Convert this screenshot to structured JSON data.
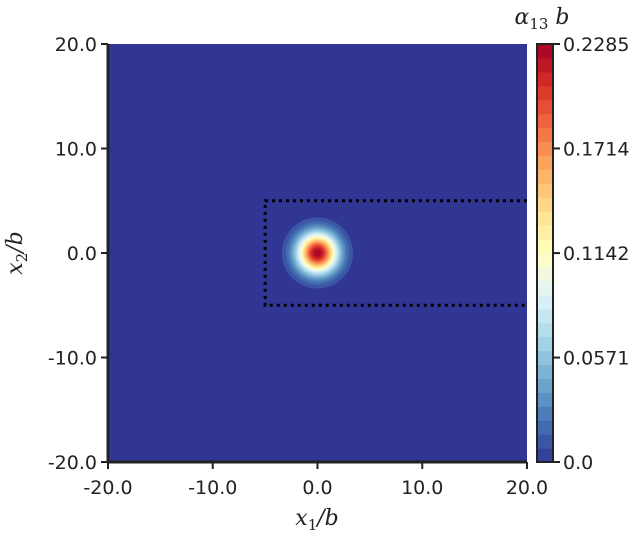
{
  "chart_data": {
    "type": "heatmap",
    "title": "",
    "xlabel": {
      "main": "x",
      "sub": "1",
      "suffix": "/b"
    },
    "ylabel": {
      "main": "x",
      "sub": "2",
      "suffix": "/b"
    },
    "xlim": [
      -20,
      20
    ],
    "ylim": [
      -20,
      20
    ],
    "x_ticks": [
      -20,
      -10,
      0,
      10,
      20
    ],
    "y_ticks": [
      -20,
      -10,
      0,
      10,
      20
    ],
    "x_tick_labels": [
      "-20.0",
      "-10.0",
      "0.0",
      "10.0",
      "20.0"
    ],
    "y_tick_labels": [
      "-20.0",
      "-10.0",
      "0.0",
      "10.0",
      "20.0"
    ],
    "field": {
      "peak": {
        "x": 0,
        "y": 0,
        "value": 0.2285
      },
      "background_value": 0.0,
      "spread": 1.3
    },
    "dotted_box": {
      "x_from": -5,
      "x_to": 20,
      "y_from": -5,
      "y_to": 5
    },
    "colorbar": {
      "label": {
        "main": "α",
        "sub": "13",
        "suffix": " b"
      },
      "min": 0.0,
      "max": 0.2285,
      "ticks": [
        0.0,
        0.0571,
        0.1142,
        0.1714,
        0.2285
      ],
      "tick_labels": [
        "0.0",
        "0.0571",
        "0.1142",
        "0.1714",
        "0.2285"
      ],
      "colormap": "RdYlBu_r",
      "levels": 30
    },
    "grid": false
  }
}
